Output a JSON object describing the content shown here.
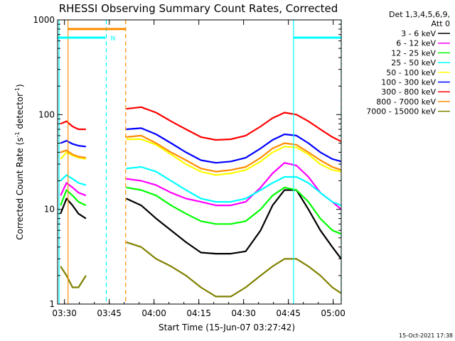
{
  "chart_data": {
    "type": "line",
    "title": "RHESSI Observing Summary Count Rates, Corrected",
    "xlabel": "Start Time (15-Jun-07 03:27:42)",
    "ylabel_main": "Corrected Count Rate (s",
    "ylabel_sup1": "-1",
    "ylabel_mid": " detector",
    "ylabel_sup2": "-1",
    "ylabel_end": ")",
    "y_scale": "log",
    "ylim": [
      1,
      1000
    ],
    "xlim_minutes": [
      0,
      95
    ],
    "x_ticks": [
      {
        "minutes": 2.3,
        "label": "03:30"
      },
      {
        "minutes": 17.3,
        "label": "03:45"
      },
      {
        "minutes": 32.3,
        "label": "04:00"
      },
      {
        "minutes": 47.3,
        "label": "04:15"
      },
      {
        "minutes": 62.3,
        "label": "04:30"
      },
      {
        "minutes": 77.3,
        "label": "04:45"
      },
      {
        "minutes": 92.3,
        "label": "05:00"
      }
    ],
    "y_ticks": [
      {
        "value": 1,
        "label": "1"
      },
      {
        "value": 10,
        "label": "10"
      },
      {
        "value": 100,
        "label": "100"
      },
      {
        "value": 1000,
        "label": "1000"
      }
    ],
    "legend_header": [
      "Det 1,3,4,5,6,9,",
      "Att 0"
    ],
    "legend_placement": "right",
    "night_label": "N",
    "data_gap_minutes": [
      9.8,
      22.8
    ],
    "series": [
      {
        "name": "3 - 6 keV",
        "color": "#000000",
        "x": [
          1,
          3,
          5,
          7,
          9.5,
          23,
          28,
          33,
          38,
          43,
          48,
          53,
          58,
          63,
          68,
          72,
          76,
          80,
          84,
          88,
          92,
          95
        ],
        "y": [
          9,
          13,
          11,
          9,
          8,
          13,
          11,
          8,
          6,
          4.5,
          3.5,
          3.4,
          3.4,
          3.6,
          6,
          11,
          16,
          16,
          10,
          6,
          4,
          3
        ]
      },
      {
        "name": "6 - 12 keV",
        "color": "#ff00ff",
        "x": [
          1,
          3,
          5,
          7,
          9.5,
          23,
          28,
          33,
          38,
          43,
          48,
          53,
          58,
          63,
          68,
          72,
          76,
          80,
          84,
          88,
          92,
          95
        ],
        "y": [
          14,
          19,
          17,
          15,
          14,
          21,
          20,
          18,
          15,
          13,
          12,
          11,
          11,
          12,
          17,
          24,
          31,
          29,
          22,
          15,
          12,
          10
        ]
      },
      {
        "name": "12 - 25 keV",
        "color": "#00ff00",
        "x": [
          1,
          3,
          5,
          7,
          9.5,
          23,
          28,
          33,
          38,
          43,
          48,
          53,
          58,
          63,
          68,
          72,
          76,
          80,
          84,
          88,
          92,
          95
        ],
        "y": [
          11,
          16,
          14,
          12,
          11,
          17,
          16,
          14,
          11,
          9,
          7.5,
          7,
          7,
          7.5,
          10,
          14,
          17,
          16,
          12,
          8,
          6,
          5.5
        ]
      },
      {
        "name": "25 - 50 keV",
        "color": "#00ffff",
        "x": [
          1,
          3,
          5,
          7,
          9.5,
          23,
          28,
          33,
          38,
          43,
          48,
          53,
          58,
          63,
          68,
          72,
          76,
          80,
          84,
          88,
          92,
          95
        ],
        "y": [
          20,
          23,
          21,
          19,
          18,
          27,
          28,
          25,
          20,
          16,
          13,
          12,
          12,
          13,
          16,
          19,
          22,
          22,
          19,
          15,
          12,
          11
        ]
      },
      {
        "name": "50 - 100 keV",
        "color": "#ffff00",
        "x": [
          1,
          3,
          5,
          7,
          9.5,
          23,
          28,
          33,
          38,
          43,
          48,
          53,
          58,
          63,
          68,
          72,
          76,
          80,
          84,
          88,
          92,
          95
        ],
        "y": [
          34,
          40,
          37,
          35,
          34,
          55,
          55,
          48,
          38,
          30,
          25,
          23,
          24,
          26,
          32,
          40,
          46,
          45,
          38,
          30,
          26,
          25
        ]
      },
      {
        "name": "100 - 300 keV",
        "color": "#0000ff",
        "x": [
          1,
          3,
          5,
          7,
          9.5,
          23,
          28,
          33,
          38,
          43,
          48,
          53,
          58,
          63,
          68,
          72,
          76,
          80,
          84,
          88,
          92,
          95
        ],
        "y": [
          50,
          53,
          49,
          47,
          46,
          70,
          72,
          62,
          50,
          40,
          33,
          31,
          32,
          35,
          44,
          54,
          62,
          60,
          50,
          40,
          34,
          32
        ]
      },
      {
        "name": "300 - 800 keV",
        "color": "#ff0000",
        "x": [
          1,
          3,
          5,
          7,
          9.5,
          23,
          28,
          33,
          38,
          43,
          48,
          53,
          58,
          63,
          68,
          72,
          76,
          80,
          84,
          88,
          92,
          95
        ],
        "y": [
          80,
          85,
          75,
          70,
          70,
          115,
          120,
          105,
          85,
          70,
          58,
          54,
          55,
          60,
          75,
          92,
          105,
          100,
          85,
          70,
          58,
          52
        ]
      },
      {
        "name": "800 - 7000 keV",
        "color": "#ff8c00",
        "x": [
          1,
          3,
          5,
          7,
          9.5,
          23,
          28,
          33,
          38,
          43,
          48,
          53,
          58,
          63,
          68,
          72,
          76,
          80,
          84,
          88,
          92,
          95
        ],
        "y": [
          40,
          42,
          38,
          36,
          35,
          58,
          60,
          50,
          40,
          33,
          27,
          25,
          26,
          28,
          35,
          44,
          50,
          48,
          40,
          33,
          28,
          26
        ]
      },
      {
        "name": "7000 - 15000 keV",
        "color": "#808000",
        "x": [
          1,
          3,
          5,
          7,
          9.5,
          23,
          28,
          33,
          38,
          43,
          48,
          53,
          58,
          63,
          68,
          72,
          76,
          80,
          84,
          88,
          92,
          95
        ],
        "y": [
          2.5,
          2,
          1.5,
          1.5,
          2,
          4.5,
          4,
          3,
          2.5,
          2,
          1.5,
          1.2,
          1.2,
          1.5,
          2,
          2.5,
          3,
          3,
          2.5,
          2,
          1.5,
          1.3
        ]
      }
    ],
    "markers": [
      {
        "kind": "attenuator",
        "color": "#ff8c00",
        "from": 3.5,
        "to": 22.8,
        "level": 800
      },
      {
        "kind": "saa",
        "color": "#00ffff",
        "from": 0,
        "to": 16,
        "level": 650
      },
      {
        "kind": "saa",
        "color": "#00ffff",
        "from": 79,
        "to": 95,
        "level": 650
      }
    ],
    "vlines": [
      {
        "minutes": 0.5,
        "color": "#00ffff",
        "style": "solid"
      },
      {
        "minutes": 3.5,
        "color": "#ff8c00",
        "style": "solid"
      },
      {
        "minutes": 16.3,
        "color": "#00ffff",
        "style": "dashed"
      },
      {
        "minutes": 22.8,
        "color": "#ff8c00",
        "style": "dashed"
      },
      {
        "minutes": 79,
        "color": "#00ffff",
        "style": "solid"
      },
      {
        "minutes": 95,
        "color": "#00ffff",
        "style": "dashed"
      }
    ]
  },
  "footer": {
    "timestamp": "15-Oct-2021 17:38"
  }
}
